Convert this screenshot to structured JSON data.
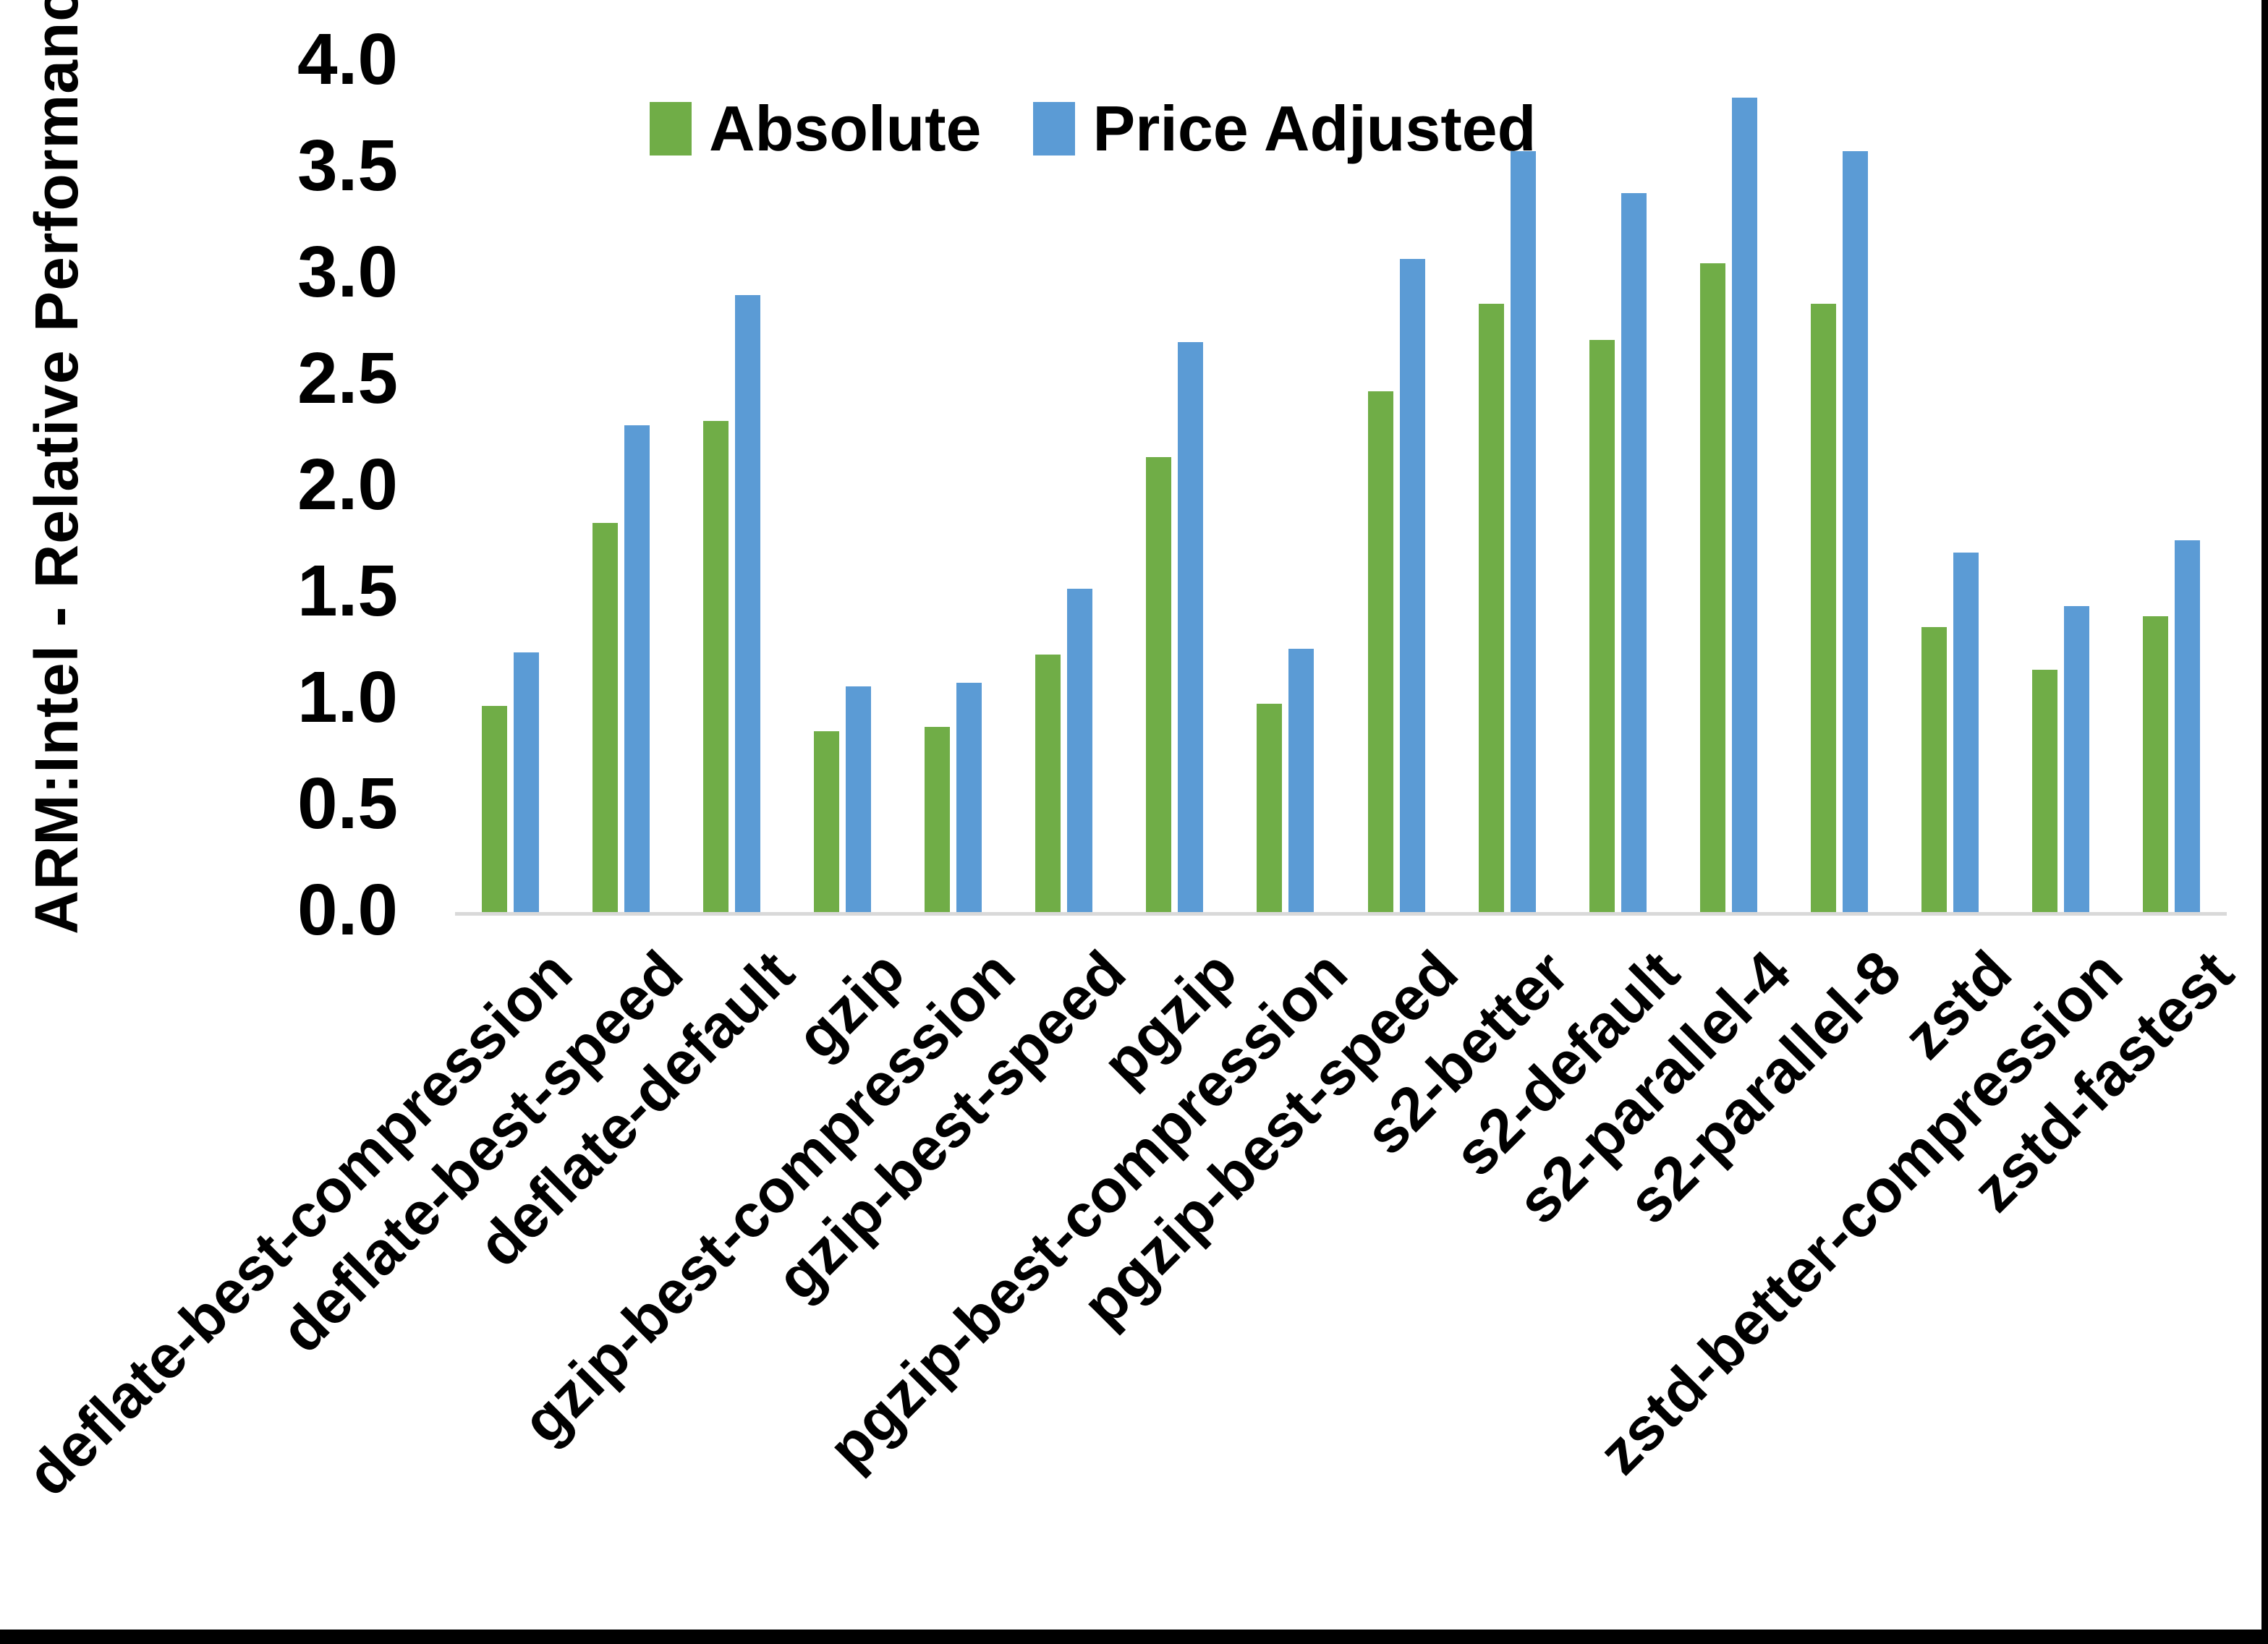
{
  "figure": {
    "y_axis_title": "ARM:Intel - Relative Performance"
  },
  "colors": {
    "axis_line": "#d9d9d9",
    "text": "#000000",
    "frame_border": "#000000",
    "absolute_series": "#70ad47",
    "price_adjusted_series": "#5b9bd5"
  },
  "legend": {
    "position": "top"
  },
  "chart_data": {
    "type": "bar",
    "title": "",
    "xlabel": "",
    "ylabel": "ARM:Intel - Relative Performance",
    "ylim": [
      0,
      4
    ],
    "ytick_step": 0.5,
    "grid": false,
    "legend_position": "top",
    "yticks": [
      "0.0",
      "0.5",
      "1.0",
      "1.5",
      "2.0",
      "2.5",
      "3.0",
      "3.5",
      "4.0"
    ],
    "categories": [
      "deflate-best-compression",
      "deflate-best-speed",
      "deflate-default",
      "gzip",
      "gzip-best-compression",
      "gzip-best-speed",
      "pgzip",
      "pgzip-best-compression",
      "pgzip-best-speed",
      "s2-better",
      "s2-default",
      "s2-parallel-4",
      "s2-parallel-8",
      "zstd",
      "zstd-better-compression",
      "zstd-fastest"
    ],
    "series": [
      {
        "name": "Absolute",
        "color": "#70ad47",
        "values": [
          0.98,
          1.84,
          2.32,
          0.86,
          0.88,
          1.22,
          2.15,
          0.99,
          2.46,
          2.87,
          2.7,
          3.06,
          2.87,
          1.35,
          1.15,
          1.4
        ]
      },
      {
        "name": "Price Adjusted",
        "color": "#5b9bd5",
        "values": [
          1.23,
          2.3,
          2.91,
          1.07,
          1.09,
          1.53,
          2.69,
          1.25,
          3.08,
          3.59,
          3.39,
          3.84,
          3.59,
          1.7,
          1.45,
          1.76
        ]
      }
    ]
  }
}
